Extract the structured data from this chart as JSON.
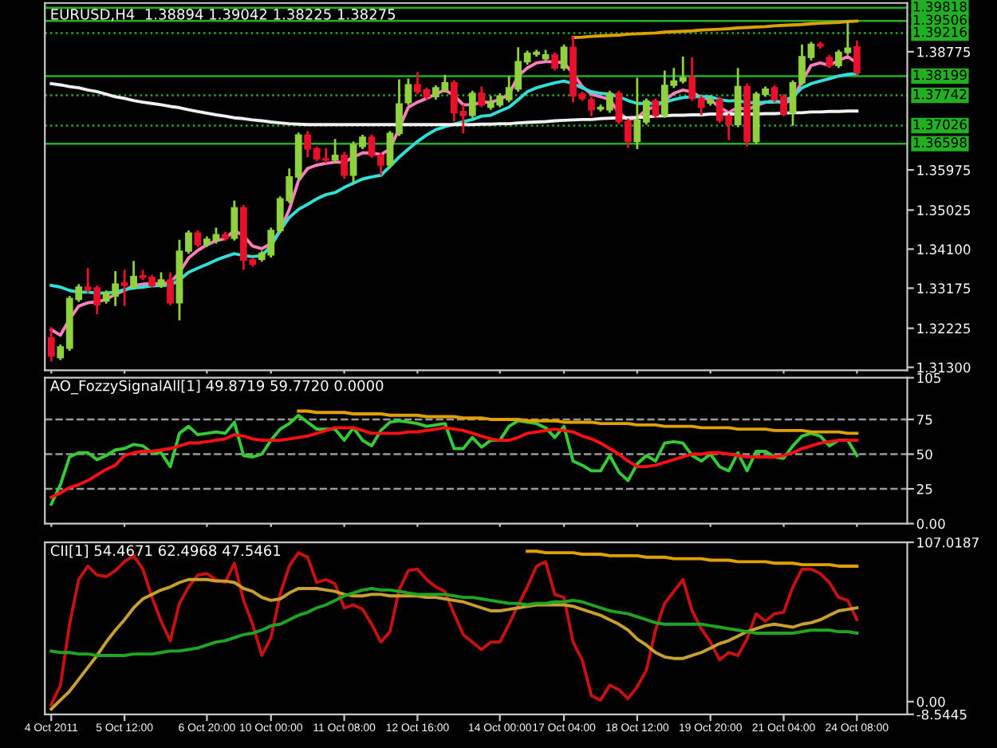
{
  "chart_data": [
    {
      "type": "candlestick",
      "title": "EURUSD,H4  1.38894 1.39042 1.38225 1.38275",
      "tick_labels": "y",
      "ohlc": [
        [
          1.32,
          1.3225,
          1.3144,
          1.3157
        ],
        [
          1.3153,
          1.3184,
          1.3147,
          1.3178
        ],
        [
          1.3175,
          1.3299,
          1.3169,
          1.3293
        ],
        [
          1.3291,
          1.3327,
          1.3285,
          1.332
        ],
        [
          1.332,
          1.3365,
          1.3306,
          1.3314
        ],
        [
          1.3318,
          1.3324,
          1.3256,
          1.3278
        ],
        [
          1.3287,
          1.3312,
          1.3281,
          1.3306
        ],
        [
          1.3299,
          1.3358,
          1.3275,
          1.3327
        ],
        [
          1.333,
          1.3361,
          1.3275,
          1.3324
        ],
        [
          1.332,
          1.3382,
          1.3314,
          1.3345
        ],
        [
          1.3347,
          1.3361,
          1.3337,
          1.3343
        ],
        [
          1.3343,
          1.3349,
          1.3318,
          1.3324
        ],
        [
          1.3324,
          1.3355,
          1.3318,
          1.3337
        ],
        [
          1.3337,
          1.3355,
          1.3277,
          1.3283
        ],
        [
          1.3283,
          1.3432,
          1.3241,
          1.3405
        ],
        [
          1.3405,
          1.3454,
          1.3399,
          1.3448
        ],
        [
          1.3448,
          1.3454,
          1.3415,
          1.3421
        ],
        [
          1.3421,
          1.344,
          1.3415,
          1.3433
        ],
        [
          1.343,
          1.3461,
          1.3423,
          1.3444
        ],
        [
          1.3444,
          1.3451,
          1.343,
          1.3436
        ],
        [
          1.3436,
          1.3525,
          1.343,
          1.3508
        ],
        [
          1.3508,
          1.3514,
          1.3361,
          1.3384
        ],
        [
          1.3384,
          1.339,
          1.3368,
          1.3374
        ],
        [
          1.3386,
          1.3406,
          1.338,
          1.34
        ],
        [
          1.3396,
          1.3461,
          1.339,
          1.3454
        ],
        [
          1.3454,
          1.3535,
          1.3448,
          1.3529
        ],
        [
          1.3525,
          1.3601,
          1.3519,
          1.3581
        ],
        [
          1.3581,
          1.3686,
          1.3575,
          1.368
        ],
        [
          1.368,
          1.369,
          1.3628,
          1.3647
        ],
        [
          1.3647,
          1.3653,
          1.3618,
          1.3624
        ],
        [
          1.3624,
          1.3649,
          1.3614,
          1.3621
        ],
        [
          1.3621,
          1.3671,
          1.3614,
          1.3632
        ],
        [
          1.3632,
          1.364,
          1.3576,
          1.3585
        ],
        [
          1.3585,
          1.3665,
          1.3566,
          1.3657
        ],
        [
          1.3653,
          1.3681,
          1.3647,
          1.3675
        ],
        [
          1.3675,
          1.3681,
          1.3626,
          1.3632
        ],
        [
          1.3632,
          1.3638,
          1.3585,
          1.3609
        ],
        [
          1.3609,
          1.369,
          1.3603,
          1.3684
        ],
        [
          1.3684,
          1.3812,
          1.3678,
          1.3754
        ],
        [
          1.3757,
          1.3814,
          1.3751,
          1.3799
        ],
        [
          1.3799,
          1.3829,
          1.3777,
          1.3783
        ],
        [
          1.3787,
          1.3793,
          1.3764,
          1.3771
        ],
        [
          1.3771,
          1.3798,
          1.3764,
          1.3792
        ],
        [
          1.3787,
          1.3823,
          1.3781,
          1.3804
        ],
        [
          1.3804,
          1.381,
          1.3712,
          1.3733
        ],
        [
          1.3736,
          1.3752,
          1.3684,
          1.3727
        ],
        [
          1.3727,
          1.3785,
          1.3721,
          1.3779
        ],
        [
          1.3779,
          1.3795,
          1.3746,
          1.3752
        ],
        [
          1.3746,
          1.3773,
          1.374,
          1.3757
        ],
        [
          1.3752,
          1.3779,
          1.3746,
          1.3773
        ],
        [
          1.3764,
          1.382,
          1.3758,
          1.3792
        ],
        [
          1.3789,
          1.3888,
          1.3783,
          1.3854
        ],
        [
          1.3854,
          1.388,
          1.3847,
          1.3874
        ],
        [
          1.3872,
          1.3882,
          1.3866,
          1.3876
        ],
        [
          1.3861,
          1.3882,
          1.3855,
          1.387
        ],
        [
          1.387,
          1.3876,
          1.3833,
          1.3839
        ],
        [
          1.3839,
          1.3895,
          1.3833,
          1.3888
        ],
        [
          1.3888,
          1.3913,
          1.3758,
          1.3773
        ],
        [
          1.3777,
          1.3783,
          1.3761,
          1.3767
        ],
        [
          1.3764,
          1.3771,
          1.3725,
          1.374
        ],
        [
          1.3742,
          1.3752,
          1.3736,
          1.3746
        ],
        [
          1.374,
          1.3785,
          1.3733,
          1.3779
        ],
        [
          1.3779,
          1.3785,
          1.3706,
          1.3712
        ],
        [
          1.3712,
          1.3719,
          1.365,
          1.3665
        ],
        [
          1.3665,
          1.3816,
          1.3647,
          1.3715
        ],
        [
          1.3711,
          1.3767,
          1.3705,
          1.3761
        ],
        [
          1.3761,
          1.3767,
          1.3721,
          1.3727
        ],
        [
          1.3727,
          1.3833,
          1.3721,
          1.3798
        ],
        [
          1.3798,
          1.3839,
          1.3792,
          1.3808
        ],
        [
          1.3808,
          1.3866,
          1.3802,
          1.3816
        ],
        [
          1.3816,
          1.3864,
          1.3761,
          1.3767
        ],
        [
          1.3767,
          1.3773,
          1.3727,
          1.3746
        ],
        [
          1.3756,
          1.3771,
          1.375,
          1.3764
        ],
        [
          1.3764,
          1.3771,
          1.3709,
          1.3715
        ],
        [
          1.3725,
          1.3731,
          1.3668,
          1.3705
        ],
        [
          1.3705,
          1.3839,
          1.3699,
          1.3795
        ],
        [
          1.3795,
          1.3802,
          1.3653,
          1.3665
        ],
        [
          1.3665,
          1.3783,
          1.3659,
          1.3777
        ],
        [
          1.3777,
          1.3795,
          1.3771,
          1.3789
        ],
        [
          1.3792,
          1.3798,
          1.3758,
          1.3764
        ],
        [
          1.3771,
          1.3777,
          1.3725,
          1.373
        ],
        [
          1.3733,
          1.381,
          1.3702,
          1.3804
        ],
        [
          1.3804,
          1.3895,
          1.3798,
          1.3866
        ],
        [
          1.3864,
          1.3901,
          1.3857,
          1.3895
        ],
        [
          1.3895,
          1.3901,
          1.3885,
          1.3891
        ],
        [
          1.3864,
          1.387,
          1.3839,
          1.3845
        ],
        [
          1.3845,
          1.3882,
          1.3839,
          1.3876
        ],
        [
          1.3876,
          1.395,
          1.387,
          1.3886
        ],
        [
          1.3889,
          1.3904,
          1.3823,
          1.3828
        ]
      ],
      "colors": [
        "#e8102a",
        "#8fd13f",
        "#8fd13f",
        "#8fd13f",
        "#e8102a",
        "#e8102a",
        "#8fd13f",
        "#8fd13f",
        "#e8102a",
        "#8fd13f",
        "#e8102a",
        "#e8102a",
        "#8fd13f",
        "#e8102a",
        "#8fd13f",
        "#8fd13f",
        "#e8102a",
        "#8fd13f",
        "#8fd13f",
        "#e8102a",
        "#8fd13f",
        "#e8102a",
        "#e8102a",
        "#8fd13f",
        "#8fd13f",
        "#8fd13f",
        "#8fd13f",
        "#8fd13f",
        "#e8102a",
        "#e8102a",
        "#e8102a",
        "#8fd13f",
        "#e8102a",
        "#8fd13f",
        "#8fd13f",
        "#e8102a",
        "#e8102a",
        "#8fd13f",
        "#8fd13f",
        "#8fd13f",
        "#e8102a",
        "#e8102a",
        "#8fd13f",
        "#8fd13f",
        "#e8102a",
        "#e8102a",
        "#8fd13f",
        "#e8102a",
        "#8fd13f",
        "#8fd13f",
        "#8fd13f",
        "#8fd13f",
        "#8fd13f",
        "#8fd13f",
        "#8fd13f",
        "#e8102a",
        "#8fd13f",
        "#e8102a",
        "#e8102a",
        "#e8102a",
        "#8fd13f",
        "#8fd13f",
        "#e8102a",
        "#e8102a",
        "#8fd13f",
        "#8fd13f",
        "#e8102a",
        "#8fd13f",
        "#8fd13f",
        "#8fd13f",
        "#e8102a",
        "#e8102a",
        "#8fd13f",
        "#e8102a",
        "#e8102a",
        "#8fd13f",
        "#e8102a",
        "#8fd13f",
        "#8fd13f",
        "#e8102a",
        "#e8102a",
        "#8fd13f",
        "#8fd13f",
        "#8fd13f",
        "#e8102a",
        "#e8102a",
        "#8fd13f",
        "#8fd13f",
        "#e8102a"
      ],
      "series": [
        {
          "type": "line",
          "color": "#ff7fbf",
          "values": [
            1.3219,
            1.3206,
            1.3244,
            1.3275,
            1.3283,
            1.3285,
            1.3291,
            1.3303,
            1.3312,
            1.3324,
            1.3327,
            1.3328,
            1.3328,
            1.333,
            1.3355,
            1.3389,
            1.3407,
            1.342,
            1.343,
            1.3435,
            1.3454,
            1.3442,
            1.3417,
            1.3411,
            1.3423,
            1.3454,
            1.3504,
            1.3572,
            1.3601,
            1.3609,
            1.3613,
            1.3616,
            1.3616,
            1.3628,
            1.3638,
            1.3638,
            1.3634,
            1.3647,
            1.3696,
            1.3746,
            1.3758,
            1.3767,
            1.3777,
            1.3787,
            1.3774,
            1.3752,
            1.3752,
            1.3758,
            1.3758,
            1.3764,
            1.3777,
            1.382,
            1.3839,
            1.3851,
            1.3854,
            1.3854,
            1.3851,
            1.3826,
            1.3795,
            1.3777,
            1.3771,
            1.3764,
            1.3733,
            1.3717,
            1.3721,
            1.374,
            1.3748,
            1.3762,
            1.3779,
            1.3787,
            1.3782,
            1.3769,
            1.3764,
            1.3746,
            1.3733,
            1.3746,
            1.374,
            1.375,
            1.3758,
            1.3762,
            1.3755,
            1.3764,
            1.3808,
            1.3845,
            1.3851,
            1.3845,
            1.3857,
            1.3866,
            1.3851
          ]
        },
        {
          "type": "line",
          "color": "#30e0d8",
          "values": [
            1.3324,
            1.332,
            1.3312,
            1.3308,
            1.3308,
            1.3306,
            1.3306,
            1.3308,
            1.3314,
            1.3318,
            1.332,
            1.3323,
            1.3324,
            1.3324,
            1.3337,
            1.3355,
            1.3365,
            1.3374,
            1.3384,
            1.3392,
            1.3399,
            1.3395,
            1.3392,
            1.3395,
            1.3417,
            1.3454,
            1.3485,
            1.3504,
            1.3516,
            1.3529,
            1.3539,
            1.3544,
            1.3556,
            1.3566,
            1.3576,
            1.3581,
            1.3585,
            1.3606,
            1.3628,
            1.3647,
            1.3665,
            1.368,
            1.3693,
            1.37,
            1.3706,
            1.3712,
            1.3717,
            1.3725,
            1.3727,
            1.3737,
            1.3746,
            1.3764,
            1.3783,
            1.3792,
            1.3798,
            1.3804,
            1.3808,
            1.3802,
            1.3792,
            1.3783,
            1.3779,
            1.3777,
            1.3771,
            1.3762,
            1.3755,
            1.3755,
            1.3755,
            1.3758,
            1.3764,
            1.3769,
            1.3771,
            1.3771,
            1.3771,
            1.3764,
            1.3761,
            1.3762,
            1.3757,
            1.3757,
            1.3758,
            1.3758,
            1.3761,
            1.3771,
            1.3792,
            1.3802,
            1.3808,
            1.3814,
            1.382,
            1.3824,
            1.3826
          ]
        },
        {
          "type": "line",
          "color": "#f0f0f0",
          "values": [
            1.3802,
            1.3799,
            1.3795,
            1.3792,
            1.3787,
            1.3783,
            1.3777,
            1.3771,
            1.3767,
            1.3762,
            1.3758,
            1.3755,
            1.3752,
            1.3748,
            1.3745,
            1.374,
            1.3736,
            1.3732,
            1.3728,
            1.3725,
            1.3721,
            1.3719,
            1.3716,
            1.3714,
            1.3711,
            1.3709,
            1.3707,
            1.3706,
            1.3705,
            1.3705,
            1.3705,
            1.3705,
            1.3705,
            1.3705,
            1.3705,
            1.3705,
            1.3705,
            1.3705,
            1.3705,
            1.3705,
            1.3705,
            1.3705,
            1.3705,
            1.3705,
            1.3705,
            1.3705,
            1.3705,
            1.3706,
            1.3706,
            1.3707,
            1.3707,
            1.3709,
            1.371,
            1.3711,
            1.3712,
            1.3714,
            1.3715,
            1.3716,
            1.3717,
            1.3717,
            1.3719,
            1.372,
            1.3721,
            1.3721,
            1.3722,
            1.3723,
            1.3725,
            1.3726,
            1.3727,
            1.3727,
            1.3728,
            1.3728,
            1.373,
            1.373,
            1.373,
            1.373,
            1.373,
            1.373,
            1.3731,
            1.3731,
            1.3732,
            1.3733,
            1.3733,
            1.3735,
            1.3735,
            1.3736,
            1.3736,
            1.3737,
            1.3737
          ]
        },
        {
          "type": "line",
          "color": "#e0a000",
          "values": [
            null,
            null,
            null,
            null,
            null,
            null,
            null,
            null,
            null,
            null,
            null,
            null,
            null,
            null,
            null,
            null,
            null,
            null,
            null,
            null,
            null,
            null,
            null,
            null,
            null,
            null,
            null,
            null,
            null,
            null,
            null,
            null,
            null,
            null,
            null,
            null,
            null,
            null,
            null,
            null,
            null,
            null,
            null,
            null,
            null,
            null,
            null,
            null,
            null,
            null,
            null,
            null,
            null,
            null,
            null,
            null,
            null,
            1.3911,
            1.3912,
            1.3914,
            1.3915,
            1.3916,
            1.3917,
            1.3919,
            1.392,
            1.3921,
            1.3922,
            1.3924,
            1.3925,
            1.3926,
            1.3927,
            1.3929,
            1.393,
            1.3931,
            1.3932,
            1.3934,
            1.3935,
            1.3936,
            1.3937,
            1.3939,
            1.394,
            1.3941,
            1.3942,
            1.3944,
            1.3945,
            1.3946,
            1.3947,
            1.3949,
            1.395
          ]
        }
      ],
      "ylim": [
        1.3123,
        1.3993
      ],
      "yticks": [
        {
          "value": 1.313,
          "label": "1.31300"
        },
        {
          "value": 1.32225,
          "label": "1.32225"
        },
        {
          "value": 1.33175,
          "label": "1.33175"
        },
        {
          "value": 1.341,
          "label": "1.34100"
        },
        {
          "value": 1.35025,
          "label": "1.35025"
        },
        {
          "value": 1.35975,
          "label": "1.35975"
        },
        {
          "value": 1.38775,
          "label": "1.38775"
        }
      ],
      "ref_lines": [
        {
          "axis": "y",
          "value": 1.39818,
          "label": "1.39818",
          "color": "#22b022",
          "line_style": "solid"
        },
        {
          "axis": "y",
          "value": 1.39506,
          "label": "1.39506",
          "color": "#22b022",
          "line_style": "solid"
        },
        {
          "axis": "y",
          "value": 1.39216,
          "label": "1.39216",
          "color": "#22b022",
          "line_style": "dotted"
        },
        {
          "axis": "y",
          "value": 1.38199,
          "label": "1.38199",
          "color": "#22b022",
          "line_style": "solid"
        },
        {
          "axis": "y",
          "value": 1.37742,
          "label": "1.37742",
          "color": "#22b022",
          "line_style": "dotted"
        },
        {
          "axis": "y",
          "value": 1.37026,
          "label": "1.37026",
          "color": "#22b022",
          "line_style": "dotted"
        },
        {
          "axis": "y",
          "value": 1.36598,
          "label": "1.36598",
          "color": "#22b022",
          "line_style": "solid"
        }
      ]
    },
    {
      "type": "line",
      "title": "AO_FozzySignalAll[1] 49.8719 59.7720 0.0000",
      "tick_labels": "y",
      "series": [
        {
          "type": "line",
          "color": "#33cc33",
          "values": [
            14,
            28,
            48,
            51,
            51,
            46,
            49,
            53,
            54,
            57,
            56,
            51,
            51,
            41,
            65,
            70,
            64,
            65,
            66,
            65,
            73,
            49,
            48,
            50,
            60,
            68,
            72,
            78,
            73,
            68,
            68,
            68,
            60,
            69,
            60,
            56,
            67,
            73,
            74,
            73,
            72,
            70,
            71,
            72,
            54,
            54,
            62,
            55,
            60,
            60,
            70,
            74,
            73,
            72,
            69,
            62,
            70,
            45,
            42,
            38,
            38,
            49,
            37,
            31,
            43,
            49,
            45,
            58,
            59,
            58,
            49,
            45,
            50,
            41,
            38,
            51,
            38,
            52,
            52,
            48,
            47,
            56,
            63,
            65,
            63,
            56,
            60,
            60,
            49
          ]
        },
        {
          "type": "line",
          "color": "#ff1010",
          "values": [
            19,
            22,
            26,
            28,
            31,
            35,
            39,
            42,
            49,
            51,
            52,
            52,
            53,
            54,
            56,
            58,
            58,
            59,
            60,
            61,
            64,
            63,
            61,
            60,
            60,
            60,
            61,
            62,
            63,
            65,
            67,
            69,
            69,
            69,
            67,
            65,
            65,
            65,
            65,
            66,
            66,
            67,
            68,
            69,
            68,
            67,
            65,
            63,
            61,
            60,
            60,
            62,
            65,
            66,
            67,
            68,
            67,
            66,
            63,
            61,
            58,
            54,
            50,
            45,
            41,
            41,
            42,
            44,
            46,
            48,
            50,
            50,
            51,
            51,
            50,
            49,
            48,
            48,
            48,
            48,
            49,
            51,
            54,
            56,
            58,
            59,
            60,
            60,
            60
          ]
        },
        {
          "type": "line",
          "color": "#e0a000",
          "values": [
            null,
            null,
            null,
            null,
            null,
            null,
            null,
            null,
            null,
            null,
            null,
            null,
            null,
            null,
            null,
            null,
            null,
            null,
            null,
            null,
            null,
            null,
            null,
            null,
            null,
            null,
            null,
            81,
            81,
            80,
            80,
            80,
            80,
            79,
            79,
            79,
            79,
            78,
            78,
            78,
            78,
            77,
            77,
            77,
            77,
            76,
            76,
            76,
            75,
            75,
            75,
            75,
            74,
            74,
            74,
            74,
            73,
            73,
            73,
            73,
            72,
            72,
            72,
            72,
            71,
            71,
            71,
            70,
            70,
            70,
            70,
            69,
            69,
            69,
            69,
            68,
            68,
            68,
            68,
            67,
            67,
            67,
            67,
            66,
            66,
            66,
            66,
            65,
            65
          ]
        }
      ],
      "ylim": [
        0,
        105
      ],
      "yticks": [
        {
          "value": 0,
          "label": "0.00"
        },
        25,
        50,
        75,
        105
      ],
      "ref_lines": [
        {
          "axis": "y",
          "value": 25,
          "color": "#9a9a9a",
          "line_style": "dashed"
        },
        {
          "axis": "y",
          "value": 50,
          "color": "#9a9a9a",
          "line_style": "dashed"
        },
        {
          "axis": "y",
          "value": 75,
          "color": "#9a9a9a",
          "line_style": "dashed"
        }
      ]
    },
    {
      "type": "line",
      "title": "CII[1] 54.4671 62.4968 47.5461",
      "categories": [
        "4 Oct 2011",
        null,
        null,
        null,
        null,
        null,
        null,
        null,
        "5 Oct 12:00",
        null,
        null,
        null,
        null,
        null,
        null,
        null,
        null,
        "6 Oct 20:00",
        null,
        null,
        null,
        null,
        null,
        null,
        "10 Oct 00:00",
        null,
        null,
        null,
        null,
        null,
        null,
        null,
        "11 Oct 08:00",
        null,
        null,
        null,
        null,
        null,
        null,
        null,
        "12 Oct 16:00",
        null,
        null,
        null,
        null,
        null,
        null,
        null,
        null,
        "14 Oct 00:00",
        null,
        null,
        null,
        null,
        null,
        null,
        "17 Oct 04:00",
        null,
        null,
        null,
        null,
        null,
        null,
        null,
        "18 Oct 12:00",
        null,
        null,
        null,
        null,
        null,
        null,
        null,
        "19 Oct 20:00",
        null,
        null,
        null,
        null,
        null,
        null,
        null,
        "21 Oct 04:00",
        null,
        null,
        null,
        null,
        null,
        null,
        null,
        "24 Oct 08:00"
      ],
      "series": [
        {
          "type": "line",
          "color": "#c81010",
          "values": [
            -2,
            11,
            52,
            82,
            91,
            85,
            84,
            88,
            94,
            98,
            89,
            70,
            54,
            41,
            66,
            77,
            85,
            86,
            82,
            80,
            93,
            68,
            52,
            31,
            43,
            72,
            91,
            100,
            97,
            80,
            82,
            79,
            63,
            65,
            62,
            52,
            40,
            47,
            75,
            88,
            89,
            82,
            77,
            74,
            59,
            45,
            40,
            35,
            40,
            40,
            52,
            65,
            77,
            91,
            94,
            72,
            70,
            40,
            28,
            4,
            1,
            11,
            8,
            2,
            10,
            21,
            48,
            66,
            74,
            82,
            61,
            49,
            40,
            28,
            33,
            31,
            42,
            59,
            54,
            59,
            60,
            77,
            89,
            89,
            86,
            80,
            70,
            68,
            55
          ]
        },
        {
          "type": "line",
          "color": "#c8a030",
          "values": [
            -5,
            1,
            7,
            15,
            23,
            31,
            40,
            48,
            55,
            63,
            69,
            72,
            75,
            77,
            80,
            82,
            82,
            82,
            81,
            81,
            80,
            76,
            74,
            70,
            68,
            69,
            73,
            76,
            76,
            76,
            75,
            74,
            72,
            71,
            71,
            72,
            72,
            71,
            71,
            71,
            71,
            70,
            70,
            69,
            68,
            67,
            65,
            63,
            61,
            61,
            62,
            63,
            64,
            65,
            65,
            65,
            65,
            64,
            62,
            60,
            58,
            55,
            52,
            48,
            42,
            38,
            33,
            30,
            29,
            29,
            31,
            33,
            36,
            39,
            41,
            44,
            47,
            49,
            51,
            52,
            51,
            50,
            52,
            53,
            55,
            58,
            61,
            62,
            63
          ]
        },
        {
          "type": "line",
          "color": "#1fa51f",
          "values": [
            34,
            33,
            33,
            32,
            32,
            31,
            31,
            31,
            31,
            32,
            32,
            32,
            33,
            34,
            34,
            35,
            36,
            38,
            40,
            41,
            43,
            45,
            46,
            48,
            51,
            52,
            55,
            58,
            60,
            63,
            65,
            68,
            71,
            73,
            75,
            76,
            75,
            75,
            74,
            73,
            72,
            72,
            72,
            72,
            71,
            70,
            70,
            69,
            68,
            67,
            66,
            66,
            65,
            66,
            66,
            67,
            67,
            68,
            67,
            65,
            63,
            61,
            60,
            59,
            57,
            55,
            53,
            52,
            52,
            52,
            52,
            52,
            51,
            50,
            49,
            48,
            47,
            46,
            46,
            46,
            46,
            46,
            47,
            48,
            48,
            48,
            47,
            47,
            46
          ]
        },
        {
          "type": "line",
          "color": "#e0a000",
          "values": [
            null,
            null,
            null,
            null,
            null,
            null,
            null,
            null,
            null,
            null,
            null,
            null,
            null,
            null,
            null,
            null,
            null,
            null,
            null,
            null,
            null,
            null,
            null,
            null,
            null,
            null,
            null,
            null,
            null,
            null,
            null,
            null,
            null,
            null,
            null,
            null,
            null,
            null,
            null,
            null,
            null,
            null,
            null,
            null,
            null,
            null,
            null,
            null,
            null,
            null,
            null,
            null,
            101,
            101,
            100,
            100,
            100,
            100,
            99,
            99,
            99,
            98,
            98,
            98,
            98,
            97,
            97,
            97,
            96,
            96,
            96,
            96,
            95,
            95,
            95,
            94,
            94,
            94,
            94,
            93,
            93,
            93,
            92,
            92,
            92,
            92,
            91,
            91,
            91
          ]
        }
      ],
      "ylim": [
        -8.5445,
        107.0187
      ],
      "yticks": [
        107.0187,
        {
          "value": 0,
          "label": "0.00"
        },
        -8.5445
      ]
    }
  ]
}
